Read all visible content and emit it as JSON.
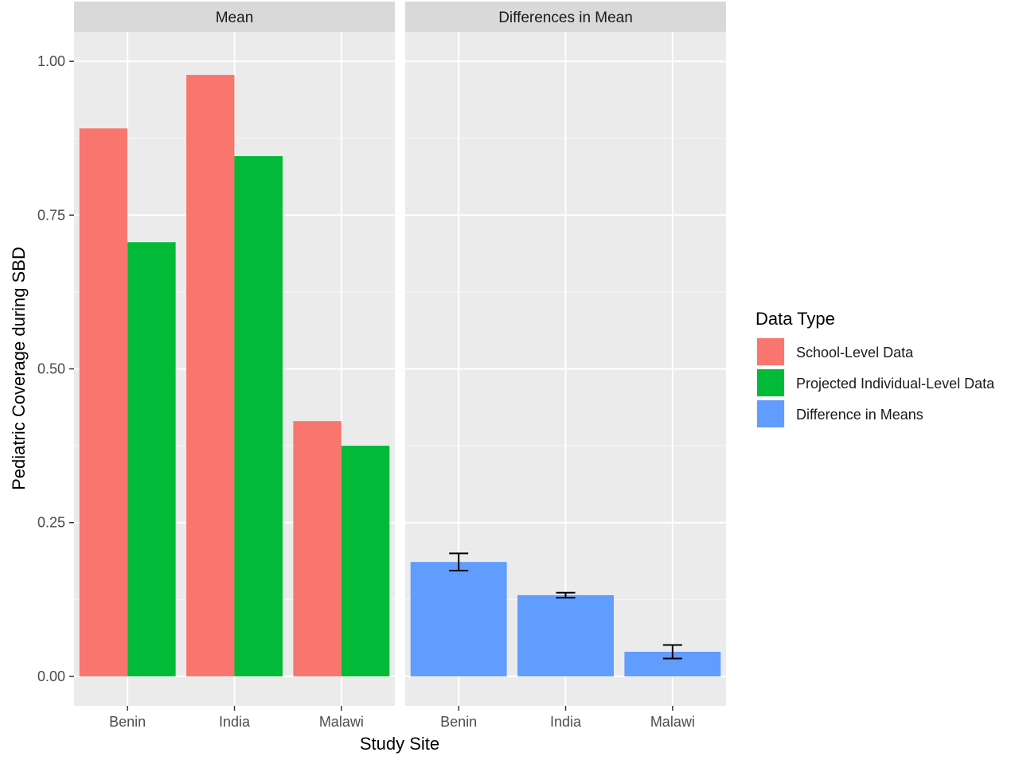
{
  "chart_data": {
    "type": "bar",
    "ylabel": "Pediatric Coverage during SBD",
    "xlabel": "Study Site",
    "ylim": [
      -0.048,
      1.048
    ],
    "yticks": [
      {
        "value": 0,
        "label": "0.00"
      },
      {
        "value": 0.25,
        "label": "0.25"
      },
      {
        "value": 0.5,
        "label": "0.50"
      },
      {
        "value": 0.75,
        "label": "0.75"
      },
      {
        "value": 1,
        "label": "1.00"
      }
    ],
    "categories": [
      "Benin",
      "India",
      "Malawi"
    ],
    "grid": true,
    "legend": {
      "title": "Data Type",
      "position": "right",
      "entries": [
        {
          "label": "School-Level Data",
          "color": "#F8766D"
        },
        {
          "label": "Projected Individual-Level Data",
          "color": "#00BA38"
        },
        {
          "label": "Difference in Means",
          "color": "#619CFF"
        }
      ]
    },
    "panels": [
      {
        "title": "Mean",
        "series": [
          {
            "name": "School-Level Data",
            "color": "#F8766D",
            "values": [
              0.891,
              0.978,
              0.415
            ]
          },
          {
            "name": "Projected Individual-Level Data",
            "color": "#00BA38",
            "values": [
              0.706,
              0.846,
              0.375
            ]
          }
        ]
      },
      {
        "title": "Differences in Mean",
        "series": [
          {
            "name": "Difference in Means",
            "color": "#619CFF",
            "values": [
              0.186,
              0.132,
              0.04
            ],
            "error_low": [
              0.172,
              0.128,
              0.029
            ],
            "error_high": [
              0.2,
              0.136,
              0.051
            ]
          }
        ]
      }
    ]
  }
}
